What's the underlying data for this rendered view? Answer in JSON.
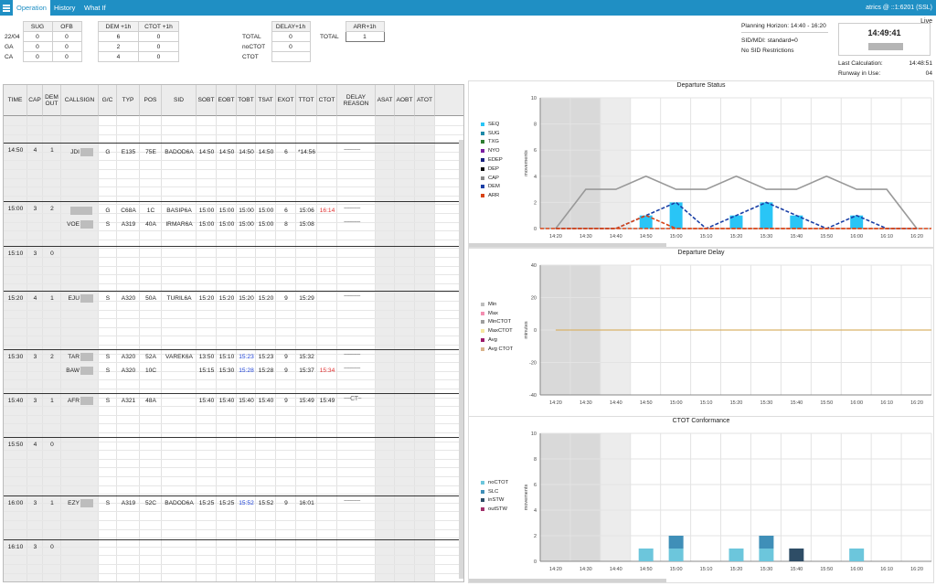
{
  "app": {
    "tabs": [
      "Operation",
      "History",
      "What If"
    ],
    "active_tab": "Operation",
    "connection": "atrics @ ::1:6201 (SSL)",
    "live_label": "Live"
  },
  "summary": {
    "sug_ofb": {
      "headers": [
        "SUG",
        "OFB"
      ],
      "rows": [
        [
          "22/04",
          "0",
          "0"
        ],
        [
          "GA",
          "0",
          "0"
        ],
        [
          "CA",
          "0",
          "0"
        ]
      ]
    },
    "dem_ctot": {
      "headers": [
        "DEM +1h",
        "CTOT +1h"
      ],
      "rows": [
        [
          "6",
          "0"
        ],
        [
          "2",
          "0"
        ],
        [
          "4",
          "0"
        ]
      ]
    },
    "delay": {
      "header": "DELAY+1h",
      "rows": [
        [
          "TOTAL",
          "0"
        ],
        [
          "noCTOT",
          "0"
        ],
        [
          "CTOT",
          ""
        ]
      ]
    },
    "arr": {
      "header": "ARR+1h",
      "label": "TOTAL",
      "value": "1"
    }
  },
  "info": {
    "planning_horizon": "Planning Horizon: 14:40 - 16:20",
    "sid_mdi": "SID/MDI: standard=0",
    "sid_restr": "No SID Restrictions",
    "clock": "14:49:41",
    "last_calc_label": "Last Calculation:",
    "last_calc_value": "14:48:51",
    "runway_label": "Runway in Use:",
    "runway_value": "04"
  },
  "grid": {
    "headers": [
      "TIME",
      "CAP",
      "DEM OUT",
      "CALLSIGN",
      "G/C",
      "TYP",
      "POS",
      "SID",
      "SOBT",
      "EOBT",
      "TOBT",
      "TSAT",
      "EXOT",
      "TTOT",
      "CTOT",
      "DELAY REASON",
      "ASAT",
      "AOBT",
      "ATOT"
    ],
    "slots": [
      {
        "time": "14:50",
        "cap": "4",
        "dem": "1"
      },
      {
        "time": "15:00",
        "cap": "3",
        "dem": "2"
      },
      {
        "time": "15:10",
        "cap": "3",
        "dem": "0"
      },
      {
        "time": "15:20",
        "cap": "4",
        "dem": "1"
      },
      {
        "time": "15:30",
        "cap": "3",
        "dem": "2"
      },
      {
        "time": "15:40",
        "cap": "3",
        "dem": "1"
      },
      {
        "time": "15:50",
        "cap": "4",
        "dem": "0"
      },
      {
        "time": "16:00",
        "cap": "3",
        "dem": "1"
      },
      {
        "time": "16:10",
        "cap": "3",
        "dem": "0"
      }
    ],
    "flights": [
      {
        "callsign": "JDI",
        "gc": "G",
        "typ": "E135",
        "pos": "75E",
        "sid": "BADOD6A",
        "sobt": "14:50",
        "eobt": "14:50",
        "tobt": "14:50",
        "tsat": "14:50",
        "exot": "6",
        "ttot": "*14:56",
        "ctot": "",
        "delay": "~~~~~"
      },
      {
        "callsign": "",
        "gc": "G",
        "typ": "C68A",
        "pos": "1C",
        "sid": "BASIP6A",
        "sobt": "15:00",
        "eobt": "15:00",
        "tobt": "15:00",
        "tsat": "15:00",
        "exot": "6",
        "ttot": "15:06",
        "ctot": "16:14",
        "delay": "~~~~~"
      },
      {
        "callsign": "VOE",
        "gc": "S",
        "typ": "A319",
        "pos": "40A",
        "sid": "IRMAR6A",
        "sobt": "15:00",
        "eobt": "15:00",
        "tobt": "15:00",
        "tsat": "15:00",
        "exot": "8",
        "ttot": "15:08",
        "ctot": "",
        "delay": "~~~~~"
      },
      {
        "callsign": "EJU",
        "gc": "S",
        "typ": "A320",
        "pos": "50A",
        "sid": "TURIL6A",
        "sobt": "15:20",
        "eobt": "15:20",
        "tobt": "15:20",
        "tsat": "15:20",
        "exot": "9",
        "ttot": "15:29",
        "ctot": "",
        "delay": "~~~~~"
      },
      {
        "callsign": "TAR",
        "gc": "S",
        "typ": "A320",
        "pos": "52A",
        "sid": "VAREK6A",
        "sobt": "13:50",
        "eobt": "15:10",
        "tobt": "15:23",
        "tsat": "15:23",
        "exot": "9",
        "ttot": "15:32",
        "ctot": "",
        "delay": "~~~~~"
      },
      {
        "callsign": "BAW",
        "gc": "S",
        "typ": "A320",
        "pos": "10C",
        "sid": "",
        "sobt": "15:15",
        "eobt": "15:30",
        "tobt": "15:28",
        "tsat": "15:28",
        "exot": "9",
        "ttot": "15:37",
        "ctot": "15:34",
        "delay": "~~~~~"
      },
      {
        "callsign": "AFR",
        "gc": "S",
        "typ": "A321",
        "pos": "48A",
        "sid": "",
        "sobt": "15:40",
        "eobt": "15:40",
        "tobt": "15:40",
        "tsat": "15:40",
        "exot": "9",
        "ttot": "15:49",
        "ctot": "15:49",
        "delay": "~~CT~"
      },
      {
        "callsign": "EZY",
        "gc": "S",
        "typ": "A319",
        "pos": "52C",
        "sid": "BADOD6A",
        "sobt": "15:25",
        "eobt": "15:25",
        "tobt": "15:52",
        "tsat": "15:52",
        "exot": "9",
        "ttot": "16:01",
        "ctot": "",
        "delay": "~~~~~"
      }
    ]
  },
  "colors": {
    "brand": "#1f8fc4",
    "tobt_blue": "#1a3fd6",
    "ctot_red": "#e03030"
  },
  "chart_data": [
    {
      "type": "bar",
      "title": "Departure Status",
      "ylabel": "movements",
      "categories": [
        "14:20",
        "14:30",
        "14:40",
        "14:50",
        "15:00",
        "15:10",
        "15:20",
        "15:30",
        "15:40",
        "15:50",
        "16:00",
        "16:10",
        "16:20"
      ],
      "ylim": [
        0,
        10
      ],
      "yticks": [
        "0",
        "2",
        "4",
        "6",
        "8",
        "10"
      ],
      "legend": [
        "SEQ",
        "SUG",
        "TXG",
        "NYO",
        "EDEP",
        "DEP",
        "CAP",
        "DEM",
        "ARR"
      ],
      "legend_colors": [
        "#29c5f6",
        "#1e8aa8",
        "#2e7d32",
        "#7b1fa2",
        "#1a237e",
        "#111111",
        "#888888",
        "#1a3fa6",
        "#d84315"
      ],
      "series": [
        {
          "name": "SEQ",
          "values": [
            0,
            0,
            0,
            1,
            2,
            0,
            1,
            2,
            1,
            0,
            1,
            0,
            0
          ]
        },
        {
          "name": "CAP",
          "values": [
            0,
            3,
            3,
            4,
            3,
            3,
            4,
            3,
            3,
            4,
            3,
            3,
            0
          ]
        },
        {
          "name": "DEM",
          "values": [
            0,
            0,
            0,
            1,
            2,
            0,
            1,
            2,
            1,
            0,
            1,
            0,
            0
          ]
        },
        {
          "name": "ARR",
          "values": [
            0,
            0,
            0,
            1,
            0,
            0,
            0,
            0,
            0,
            0,
            0,
            0,
            0
          ]
        }
      ]
    },
    {
      "type": "line",
      "title": "Departure Delay",
      "ylabel": "minutes",
      "categories": [
        "14:20",
        "14:30",
        "14:40",
        "14:50",
        "15:00",
        "15:10",
        "15:20",
        "15:30",
        "15:40",
        "15:50",
        "16:00",
        "16:10",
        "16:20"
      ],
      "ylim": [
        -40,
        40
      ],
      "yticks": [
        "-40",
        "-20",
        "0",
        "20",
        "40"
      ],
      "legend": [
        "Min",
        "Max",
        "MinCTOT",
        "MaxCTOT",
        "Avg",
        "Avg CTOT"
      ],
      "legend_colors": [
        "#bdbdbd",
        "#f48fb1",
        "#9e9e9e",
        "#f5e6a0",
        "#9c1a6b",
        "#d9b38c"
      ],
      "series": [
        {
          "name": "Avg CTOT",
          "values": [
            0,
            0,
            0,
            0,
            0,
            0,
            0,
            0,
            0,
            0,
            0,
            0,
            0
          ]
        }
      ]
    },
    {
      "type": "bar",
      "title": "CTOT Conformance",
      "ylabel": "movements",
      "categories": [
        "14:20",
        "14:30",
        "14:40",
        "14:50",
        "15:00",
        "15:10",
        "15:20",
        "15:30",
        "15:40",
        "15:50",
        "16:00",
        "16:10",
        "16:20"
      ],
      "ylim": [
        0,
        10
      ],
      "yticks": [
        "0",
        "2",
        "4",
        "6",
        "8",
        "10"
      ],
      "legend": [
        "noCTOT",
        "SLC",
        "inSTW",
        "outSTW"
      ],
      "legend_colors": [
        "#6cc6dc",
        "#3f8fb8",
        "#2e4d66",
        "#a0306a"
      ],
      "series": [
        {
          "name": "noCTOT",
          "values": [
            0,
            0,
            0,
            1,
            1,
            0,
            1,
            1,
            0,
            0,
            1,
            0,
            0
          ]
        },
        {
          "name": "SLC",
          "values": [
            0,
            0,
            0,
            0,
            1,
            0,
            0,
            1,
            0,
            0,
            0,
            0,
            0
          ]
        },
        {
          "name": "inSTW",
          "values": [
            0,
            0,
            0,
            0,
            0,
            0,
            0,
            0,
            1,
            0,
            0,
            0,
            0
          ]
        }
      ]
    }
  ]
}
